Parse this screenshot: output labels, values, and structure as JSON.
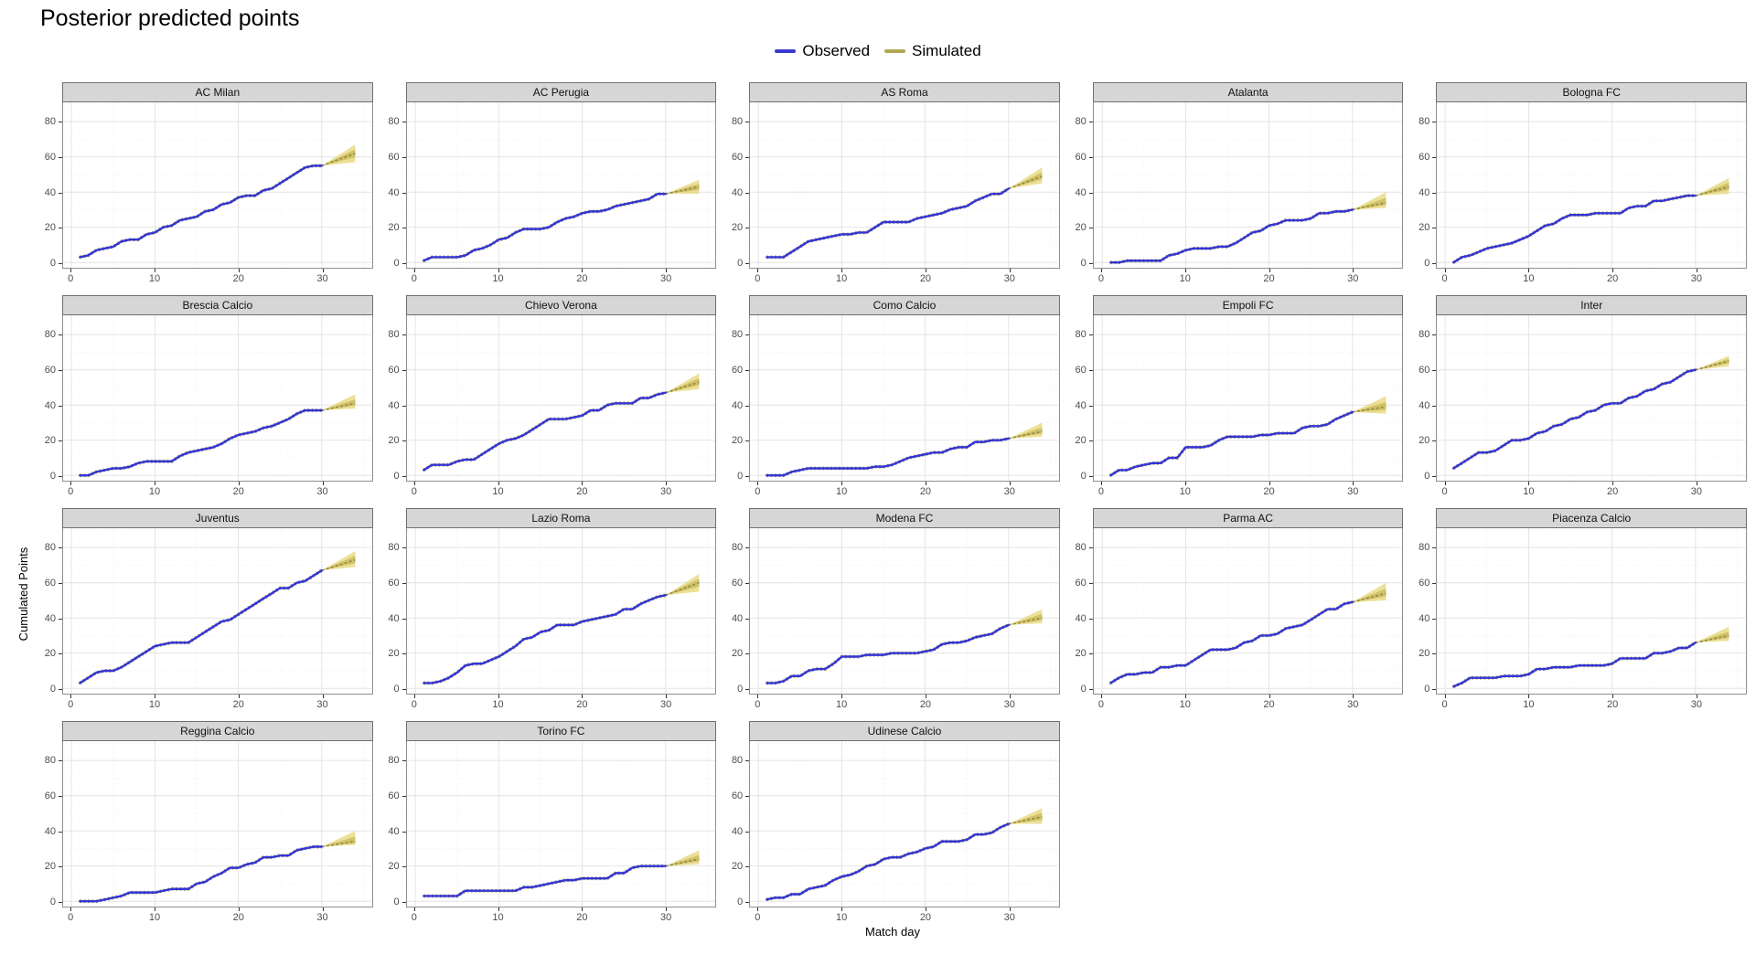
{
  "title": "Posterior predicted points",
  "legend": {
    "items": [
      {
        "label": "Observed",
        "color": "#3a3ad0"
      },
      {
        "label": "Simulated",
        "color": "#b3a653"
      }
    ]
  },
  "axes": {
    "x_label": "Match day",
    "y_label": "Cumulated Points",
    "x_ticks": [
      0,
      10,
      20,
      30
    ],
    "y_ticks": [
      0,
      20,
      40,
      60,
      80
    ],
    "x_range": [
      -1,
      36
    ],
    "y_range": [
      -3,
      91
    ]
  },
  "colors": {
    "observed_line": "#3434d4",
    "simulated_line": "#968b45",
    "simulated_underlay": "#9a8f4d",
    "ribbon_outer": "#e7d87f",
    "ribbon_inner": "#cdbc5e",
    "strip_bg": "#d6d6d6",
    "strip_border": "#6f6f6f",
    "panel_border": "#8f8f8f",
    "grid_major": "#e4e4e4",
    "grid_minor": "#f1f1f1",
    "tick_text": "#4d4d4d"
  },
  "chart_data": {
    "type": "line",
    "title": "Posterior predicted points",
    "xlabel": "Match day",
    "ylabel": "Cumulated Points",
    "x_observed_days": "1-30",
    "x_simulated_days": "30-34",
    "legend_position": "top-center",
    "grid": true,
    "facets": [
      {
        "team": "AC Milan",
        "observed": [
          3,
          4,
          7,
          8,
          9,
          12,
          13,
          13,
          16,
          17,
          20,
          21,
          24,
          25,
          26,
          29,
          30,
          33,
          34,
          37,
          38,
          38,
          41,
          42,
          45,
          48,
          51,
          54,
          55,
          55
        ],
        "simulated_day34": {
          "lower": 57,
          "median": 62,
          "upper": 67
        }
      },
      {
        "team": "AC Perugia",
        "observed": [
          1,
          3,
          3,
          3,
          3,
          4,
          7,
          8,
          10,
          13,
          14,
          17,
          19,
          19,
          19,
          20,
          23,
          25,
          26,
          28,
          29,
          29,
          30,
          32,
          33,
          34,
          35,
          36,
          39,
          39
        ],
        "simulated_day34": {
          "lower": 39,
          "median": 43,
          "upper": 47
        }
      },
      {
        "team": "AS Roma",
        "observed": [
          3,
          3,
          3,
          6,
          9,
          12,
          13,
          14,
          15,
          16,
          16,
          17,
          17,
          20,
          23,
          23,
          23,
          23,
          25,
          26,
          27,
          28,
          30,
          31,
          32,
          35,
          37,
          39,
          39,
          42
        ],
        "simulated_day34": {
          "lower": 45,
          "median": 49,
          "upper": 54
        }
      },
      {
        "team": "Atalanta",
        "observed": [
          0,
          0,
          1,
          1,
          1,
          1,
          1,
          4,
          5,
          7,
          8,
          8,
          8,
          9,
          9,
          11,
          14,
          17,
          18,
          21,
          22,
          24,
          24,
          24,
          25,
          28,
          28,
          29,
          29,
          30
        ],
        "simulated_day34": {
          "lower": 31,
          "median": 34,
          "upper": 40
        }
      },
      {
        "team": "Bologna FC",
        "observed": [
          0,
          3,
          4,
          6,
          8,
          9,
          10,
          11,
          13,
          15,
          18,
          21,
          22,
          25,
          27,
          27,
          27,
          28,
          28,
          28,
          28,
          31,
          32,
          32,
          35,
          35,
          36,
          37,
          38,
          38
        ],
        "simulated_day34": {
          "lower": 39,
          "median": 43,
          "upper": 48
        }
      },
      {
        "team": "Brescia Calcio",
        "observed": [
          0,
          0,
          2,
          3,
          4,
          4,
          5,
          7,
          8,
          8,
          8,
          8,
          11,
          13,
          14,
          15,
          16,
          18,
          21,
          23,
          24,
          25,
          27,
          28,
          30,
          32,
          35,
          37,
          37,
          37
        ],
        "simulated_day34": {
          "lower": 38,
          "median": 41,
          "upper": 46
        }
      },
      {
        "team": "Chievo Verona",
        "observed": [
          3,
          6,
          6,
          6,
          8,
          9,
          9,
          12,
          15,
          18,
          20,
          21,
          23,
          26,
          29,
          32,
          32,
          32,
          33,
          34,
          37,
          37,
          40,
          41,
          41,
          41,
          44,
          44,
          46,
          47
        ],
        "simulated_day34": {
          "lower": 49,
          "median": 53,
          "upper": 58
        }
      },
      {
        "team": "Como Calcio",
        "observed": [
          0,
          0,
          0,
          2,
          3,
          4,
          4,
          4,
          4,
          4,
          4,
          4,
          4,
          5,
          5,
          6,
          8,
          10,
          11,
          12,
          13,
          13,
          15,
          16,
          16,
          19,
          19,
          20,
          20,
          21
        ],
        "simulated_day34": {
          "lower": 22,
          "median": 25,
          "upper": 30
        }
      },
      {
        "team": "Empoli FC",
        "observed": [
          0,
          3,
          3,
          5,
          6,
          7,
          7,
          10,
          10,
          16,
          16,
          16,
          17,
          20,
          22,
          22,
          22,
          22,
          23,
          23,
          24,
          24,
          24,
          27,
          28,
          28,
          29,
          32,
          34,
          36
        ],
        "simulated_day34": {
          "lower": 35,
          "median": 39,
          "upper": 45
        }
      },
      {
        "team": "Inter",
        "observed": [
          4,
          7,
          10,
          13,
          13,
          14,
          17,
          20,
          20,
          21,
          24,
          25,
          28,
          29,
          32,
          33,
          36,
          37,
          40,
          41,
          41,
          44,
          45,
          48,
          49,
          52,
          53,
          56,
          59,
          60
        ],
        "simulated_day34": {
          "lower": 62,
          "median": 65,
          "upper": 68
        }
      },
      {
        "team": "Juventus",
        "observed": [
          3,
          6,
          9,
          10,
          10,
          12,
          15,
          18,
          21,
          24,
          25,
          26,
          26,
          26,
          29,
          32,
          35,
          38,
          39,
          42,
          45,
          48,
          51,
          54,
          57,
          57,
          60,
          61,
          64,
          67
        ],
        "simulated_day34": {
          "lower": 69,
          "median": 73,
          "upper": 78
        }
      },
      {
        "team": "Lazio Roma",
        "observed": [
          3,
          3,
          4,
          6,
          9,
          13,
          14,
          14,
          16,
          18,
          21,
          24,
          28,
          29,
          32,
          33,
          36,
          36,
          36,
          38,
          39,
          40,
          41,
          42,
          45,
          45,
          48,
          50,
          52,
          53
        ],
        "simulated_day34": {
          "lower": 55,
          "median": 60,
          "upper": 65
        }
      },
      {
        "team": "Modena FC",
        "observed": [
          3,
          3,
          4,
          7,
          7,
          10,
          11,
          11,
          14,
          18,
          18,
          18,
          19,
          19,
          19,
          20,
          20,
          20,
          20,
          21,
          22,
          25,
          26,
          26,
          27,
          29,
          30,
          31,
          34,
          36
        ],
        "simulated_day34": {
          "lower": 37,
          "median": 40,
          "upper": 45
        }
      },
      {
        "team": "Parma AC",
        "observed": [
          3,
          6,
          8,
          8,
          9,
          9,
          12,
          12,
          13,
          13,
          16,
          19,
          22,
          22,
          22,
          23,
          26,
          27,
          30,
          30,
          31,
          34,
          35,
          36,
          39,
          42,
          45,
          45,
          48,
          49
        ],
        "simulated_day34": {
          "lower": 50,
          "median": 54,
          "upper": 60
        }
      },
      {
        "team": "Piacenza Calcio",
        "observed": [
          1,
          3,
          6,
          6,
          6,
          6,
          7,
          7,
          7,
          8,
          11,
          11,
          12,
          12,
          12,
          13,
          13,
          13,
          13,
          14,
          17,
          17,
          17,
          17,
          20,
          20,
          21,
          23,
          23,
          26
        ],
        "simulated_day34": {
          "lower": 27,
          "median": 30,
          "upper": 35
        }
      },
      {
        "team": "Reggina Calcio",
        "observed": [
          0,
          0,
          0,
          1,
          2,
          3,
          5,
          5,
          5,
          5,
          6,
          7,
          7,
          7,
          10,
          11,
          14,
          16,
          19,
          19,
          21,
          22,
          25,
          25,
          26,
          26,
          29,
          30,
          31,
          31
        ],
        "simulated_day34": {
          "lower": 32,
          "median": 34,
          "upper": 40
        }
      },
      {
        "team": "Torino FC",
        "observed": [
          3,
          3,
          3,
          3,
          3,
          6,
          6,
          6,
          6,
          6,
          6,
          6,
          8,
          8,
          9,
          10,
          11,
          12,
          12,
          13,
          13,
          13,
          13,
          16,
          16,
          19,
          20,
          20,
          20,
          20
        ],
        "simulated_day34": {
          "lower": 21,
          "median": 24,
          "upper": 29
        }
      },
      {
        "team": "Udinese Calcio",
        "observed": [
          1,
          2,
          2,
          4,
          4,
          7,
          8,
          9,
          12,
          14,
          15,
          17,
          20,
          21,
          24,
          25,
          25,
          27,
          28,
          30,
          31,
          34,
          34,
          34,
          35,
          38,
          38,
          39,
          42,
          44
        ],
        "simulated_day34": {
          "lower": 44,
          "median": 48,
          "upper": 53
        }
      }
    ]
  }
}
